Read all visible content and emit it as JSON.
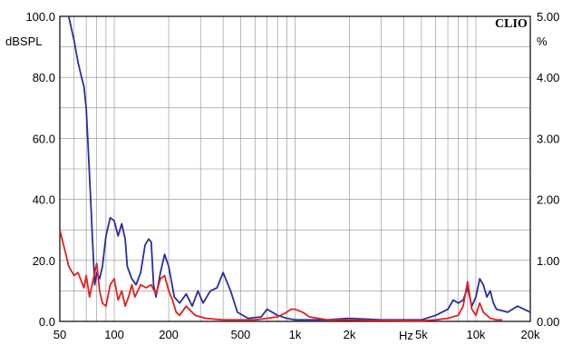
{
  "chart_data": {
    "type": "line",
    "brand": "CLIO",
    "x_scale": "log",
    "xlim": [
      50,
      20000
    ],
    "ylim_left": [
      0,
      100
    ],
    "ylim_right": [
      0,
      5
    ],
    "left_unit": "dBSPL",
    "right_unit": "%",
    "x_unit": "Hz",
    "x_ticks": [
      {
        "v": 50,
        "label": "50"
      },
      {
        "v": 100,
        "label": "100"
      },
      {
        "v": 200,
        "label": "200"
      },
      {
        "v": 500,
        "label": "500"
      },
      {
        "v": 1000,
        "label": "1k"
      },
      {
        "v": 2000,
        "label": "2k"
      },
      {
        "v": 5000,
        "label": "5k"
      },
      {
        "v": 10000,
        "label": "10k"
      },
      {
        "v": 20000,
        "label": "20k"
      }
    ],
    "y_ticks_left": [
      {
        "v": 0,
        "label": "0.0"
      },
      {
        "v": 20,
        "label": "20.0"
      },
      {
        "v": 40,
        "label": "40.0"
      },
      {
        "v": 60,
        "label": "60.0"
      },
      {
        "v": 80,
        "label": "80.0"
      },
      {
        "v": 100,
        "label": "100.0"
      }
    ],
    "y_ticks_right": [
      {
        "v": 0,
        "label": "0.00"
      },
      {
        "v": 1,
        "label": "1.00"
      },
      {
        "v": 2,
        "label": "2.00"
      },
      {
        "v": 3,
        "label": "3.00"
      },
      {
        "v": 4,
        "label": "4.00"
      },
      {
        "v": 5,
        "label": "5.00"
      }
    ],
    "grid": true,
    "series": [
      {
        "color": "#2b2e9c",
        "axis": "left",
        "points": [
          [
            56,
            100
          ],
          [
            60,
            92
          ],
          [
            63,
            85
          ],
          [
            66,
            80
          ],
          [
            68,
            77
          ],
          [
            70,
            70
          ],
          [
            72,
            55
          ],
          [
            74,
            40
          ],
          [
            76,
            25
          ],
          [
            78,
            12
          ],
          [
            80,
            16
          ],
          [
            83,
            14
          ],
          [
            86,
            18
          ],
          [
            90,
            28
          ],
          [
            95,
            34
          ],
          [
            100,
            33
          ],
          [
            105,
            28
          ],
          [
            110,
            32
          ],
          [
            115,
            27
          ],
          [
            118,
            18
          ],
          [
            125,
            14
          ],
          [
            132,
            12
          ],
          [
            140,
            16
          ],
          [
            148,
            25
          ],
          [
            155,
            27
          ],
          [
            160,
            26
          ],
          [
            165,
            12
          ],
          [
            170,
            8
          ],
          [
            180,
            16
          ],
          [
            190,
            22
          ],
          [
            200,
            18
          ],
          [
            215,
            8
          ],
          [
            230,
            6
          ],
          [
            250,
            9
          ],
          [
            270,
            5
          ],
          [
            290,
            10
          ],
          [
            310,
            6
          ],
          [
            340,
            10
          ],
          [
            370,
            11
          ],
          [
            400,
            16
          ],
          [
            440,
            10
          ],
          [
            480,
            3
          ],
          [
            550,
            1
          ],
          [
            650,
            1.5
          ],
          [
            700,
            4
          ],
          [
            800,
            2
          ],
          [
            900,
            1
          ],
          [
            1000,
            0.5
          ],
          [
            1500,
            0.5
          ],
          [
            2000,
            1
          ],
          [
            3000,
            0.5
          ],
          [
            5000,
            0.5
          ],
          [
            6000,
            2
          ],
          [
            7000,
            4
          ],
          [
            7500,
            7
          ],
          [
            8000,
            6
          ],
          [
            8500,
            7
          ],
          [
            9000,
            11
          ],
          [
            9500,
            5
          ],
          [
            10000,
            8
          ],
          [
            10500,
            14
          ],
          [
            11000,
            12
          ],
          [
            11500,
            8
          ],
          [
            12000,
            10
          ],
          [
            12500,
            6
          ],
          [
            13000,
            4
          ],
          [
            15000,
            3
          ],
          [
            17000,
            5
          ],
          [
            20000,
            3
          ]
        ]
      },
      {
        "color": "#e02020",
        "axis": "left",
        "points": [
          [
            50,
            30
          ],
          [
            54,
            22
          ],
          [
            56,
            18
          ],
          [
            60,
            15
          ],
          [
            63,
            16
          ],
          [
            66,
            13
          ],
          [
            68,
            11
          ],
          [
            70,
            15
          ],
          [
            73,
            8
          ],
          [
            76,
            13
          ],
          [
            78,
            16
          ],
          [
            80,
            19
          ],
          [
            83,
            10
          ],
          [
            86,
            6
          ],
          [
            90,
            5
          ],
          [
            95,
            12
          ],
          [
            100,
            14
          ],
          [
            105,
            7
          ],
          [
            110,
            10
          ],
          [
            115,
            5
          ],
          [
            120,
            8
          ],
          [
            125,
            12
          ],
          [
            130,
            8
          ],
          [
            140,
            12
          ],
          [
            150,
            11
          ],
          [
            160,
            12
          ],
          [
            170,
            9
          ],
          [
            180,
            14
          ],
          [
            190,
            15
          ],
          [
            200,
            10
          ],
          [
            210,
            7
          ],
          [
            220,
            3
          ],
          [
            230,
            2
          ],
          [
            250,
            5
          ],
          [
            280,
            2
          ],
          [
            320,
            1
          ],
          [
            400,
            0.5
          ],
          [
            600,
            0.5
          ],
          [
            700,
            1
          ],
          [
            800,
            1.5
          ],
          [
            900,
            3
          ],
          [
            950,
            4
          ],
          [
            1000,
            4
          ],
          [
            1100,
            3
          ],
          [
            1200,
            1.5
          ],
          [
            1500,
            0.5
          ],
          [
            3000,
            0.3
          ],
          [
            5000,
            0.2
          ],
          [
            6000,
            0.5
          ],
          [
            7000,
            1
          ],
          [
            8000,
            2
          ],
          [
            8500,
            5
          ],
          [
            9000,
            13
          ],
          [
            9500,
            4
          ],
          [
            10000,
            2
          ],
          [
            10500,
            6
          ],
          [
            11000,
            3
          ],
          [
            12000,
            1
          ],
          [
            13000,
            0.5
          ],
          [
            14000,
            0.5
          ]
        ]
      }
    ]
  }
}
